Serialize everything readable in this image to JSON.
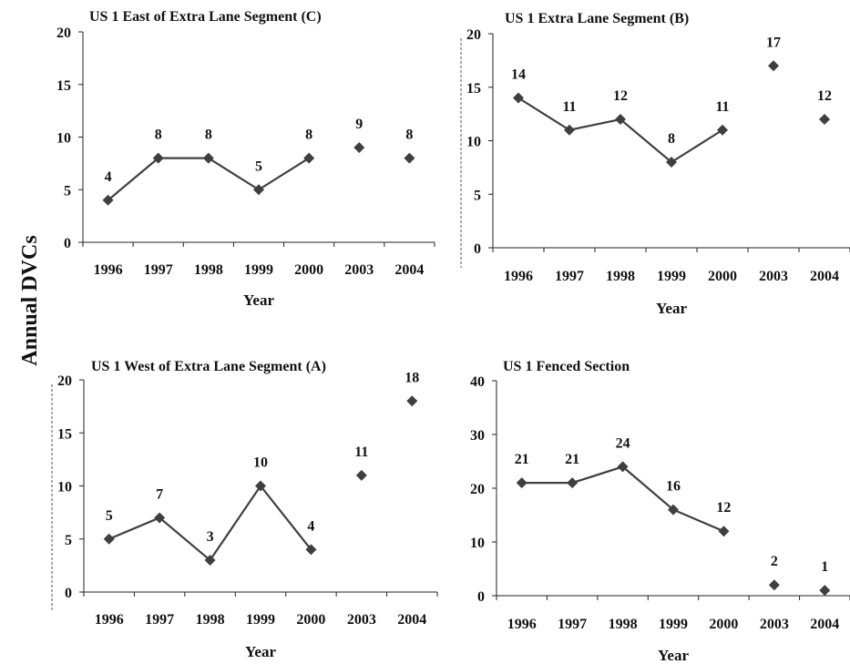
{
  "figure": {
    "ylabel": "Annual DVCs"
  },
  "colors": {
    "marker": "#3f3f3f",
    "line": "#3f3f3f",
    "axis": "#222222",
    "text": "#111111"
  },
  "chart_data": [
    {
      "type": "line",
      "title": "US 1 East of Extra Lane Segment (C)",
      "xlabel": "Year",
      "ylabel": "Annual DVCs",
      "categories": [
        "1996",
        "1997",
        "1998",
        "1999",
        "2000",
        "2003",
        "2004"
      ],
      "series": [
        {
          "values": [
            4,
            8,
            8,
            5,
            8,
            9,
            8
          ]
        }
      ],
      "connected_categories": [
        "1996",
        "1997",
        "1998",
        "1999",
        "2000"
      ],
      "ylim": [
        0,
        20
      ],
      "yticks": [
        0,
        5,
        10,
        15,
        20
      ],
      "data_labels": [
        "4",
        "8",
        "8",
        "5",
        "8",
        "9",
        "8"
      ],
      "grid": false
    },
    {
      "type": "line",
      "title": "US 1 Extra Lane Segment (B)",
      "xlabel": "Year",
      "ylabel": "Annual DVCs",
      "categories": [
        "1996",
        "1997",
        "1998",
        "1999",
        "2000",
        "2003",
        "2004"
      ],
      "series": [
        {
          "values": [
            14,
            11,
            12,
            8,
            11,
            17,
            12
          ]
        }
      ],
      "connected_categories": [
        "1996",
        "1997",
        "1998",
        "1999",
        "2000"
      ],
      "ylim": [
        0,
        20
      ],
      "yticks": [
        0,
        5,
        10,
        15,
        20
      ],
      "data_labels": [
        "14",
        "11",
        "12",
        "8",
        "11",
        "17",
        "12"
      ],
      "grid": false
    },
    {
      "type": "line",
      "title": "US 1 West of Extra Lane Segment (A)",
      "xlabel": "Year",
      "ylabel": "Annual DVCs",
      "categories": [
        "1996",
        "1997",
        "1998",
        "1999",
        "2000",
        "2003",
        "2004"
      ],
      "series": [
        {
          "values": [
            5,
            7,
            3,
            10,
            4,
            11,
            18
          ]
        }
      ],
      "connected_categories": [
        "1996",
        "1997",
        "1998",
        "1999",
        "2000"
      ],
      "ylim": [
        0,
        20
      ],
      "yticks": [
        0,
        5,
        10,
        15,
        20
      ],
      "data_labels": [
        "5",
        "7",
        "3",
        "10",
        "4",
        "11",
        "18"
      ],
      "grid": false
    },
    {
      "type": "line",
      "title": "US 1 Fenced Section",
      "xlabel": "Year",
      "ylabel": "Annual DVCs",
      "categories": [
        "1996",
        "1997",
        "1998",
        "1999",
        "2000",
        "2003",
        "2004"
      ],
      "series": [
        {
          "values": [
            21,
            21,
            24,
            16,
            12,
            2,
            1
          ]
        }
      ],
      "connected_categories": [
        "1996",
        "1997",
        "1998",
        "1999",
        "2000"
      ],
      "ylim": [
        0,
        40
      ],
      "yticks": [
        0,
        10,
        20,
        30,
        40
      ],
      "data_labels": [
        "21",
        "21",
        "24",
        "16",
        "12",
        "2",
        "1"
      ],
      "grid": false
    }
  ]
}
